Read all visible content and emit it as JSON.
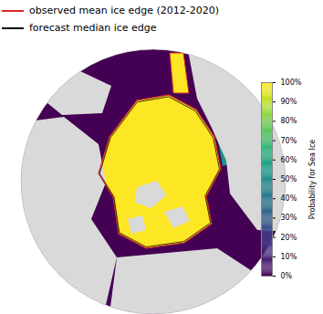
{
  "chart_data": {
    "type": "map",
    "legend": [
      {
        "name": "observed mean ice edge (2012-2020)",
        "color": "#d62728"
      },
      {
        "name": "forecast median ice edge",
        "color": "#000000"
      }
    ],
    "colorbar": {
      "label": "Probability for Sea Ice",
      "color": "viridis",
      "range": [
        0,
        100
      ],
      "ticks": [
        {
          "value": 0,
          "label": "0%"
        },
        {
          "value": 10,
          "label": "10%"
        },
        {
          "value": 20,
          "label": "20%"
        },
        {
          "value": 30,
          "label": "30%"
        },
        {
          "value": 40,
          "label": "40%"
        },
        {
          "value": 50,
          "label": "50%"
        },
        {
          "value": 60,
          "label": "60%"
        },
        {
          "value": 70,
          "label": "70%"
        },
        {
          "value": 80,
          "label": "80%"
        },
        {
          "value": 90,
          "label": "90%"
        },
        {
          "value": 100,
          "label": "100%"
        }
      ]
    }
  }
}
